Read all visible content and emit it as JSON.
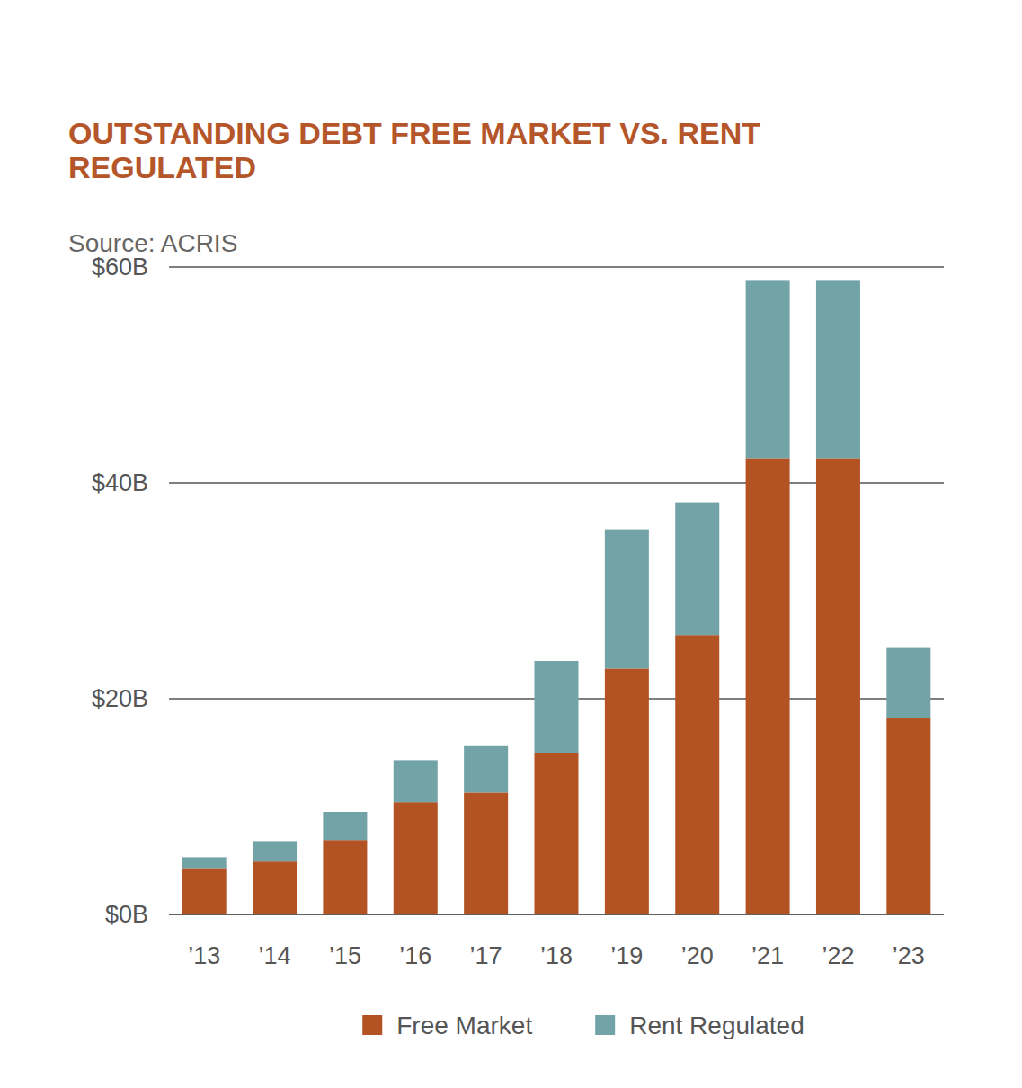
{
  "chart_data": {
    "type": "bar",
    "stacked": true,
    "title": "OUTSTANDING DEBT FREE MARKET VS. RENT REGULATED",
    "subtitle": "Source: ACRIS",
    "categories": [
      "’13",
      "’14",
      "’15",
      "’16",
      "’17",
      "’18",
      "’19",
      "’20",
      "’21",
      "’22",
      "’23"
    ],
    "series": [
      {
        "name": "Free Market",
        "color": "#b35223",
        "values": [
          4.3,
          4.9,
          6.9,
          10.4,
          11.3,
          15.0,
          22.8,
          25.9,
          42.3,
          42.3,
          18.2
        ]
      },
      {
        "name": "Rent Regulated",
        "color": "#72a4a7",
        "values": [
          1.0,
          1.9,
          2.6,
          3.9,
          4.3,
          8.5,
          12.9,
          12.3,
          16.5,
          16.5,
          6.5
        ]
      }
    ],
    "ylim": [
      0,
      60
    ],
    "yticks": [
      {
        "value": 0,
        "label": "$0B"
      },
      {
        "value": 20,
        "label": "$20B"
      },
      {
        "value": 40,
        "label": "$40B"
      },
      {
        "value": 60,
        "label": "$60B"
      }
    ],
    "grid": true,
    "legend": "bottom"
  }
}
